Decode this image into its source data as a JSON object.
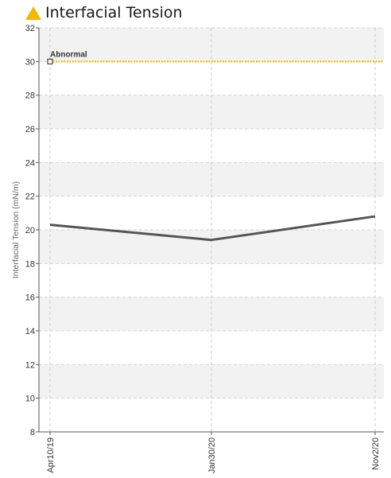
{
  "header": {
    "title": "Interfacial Tension",
    "icon": "warning-triangle-icon",
    "icon_color": "#F5B800"
  },
  "chart_data": {
    "type": "line",
    "title": "Interfacial Tension",
    "ylabel": "Interfacial Tension (mN/m)",
    "xlabel": "",
    "x": [
      "Apr10/19",
      "Jan30/20",
      "Nov2/20"
    ],
    "series": [
      {
        "values": [
          20.3,
          19.4,
          20.8
        ],
        "color": "#555555"
      }
    ],
    "threshold": {
      "label": "Abnormal",
      "value": 30,
      "color": "#F5C518"
    },
    "ylim": [
      8,
      32
    ],
    "yticks": [
      8,
      10,
      12,
      14,
      16,
      18,
      20,
      22,
      24,
      26,
      28,
      30,
      32
    ],
    "grid": true,
    "band_color": "#F2F2F2"
  }
}
